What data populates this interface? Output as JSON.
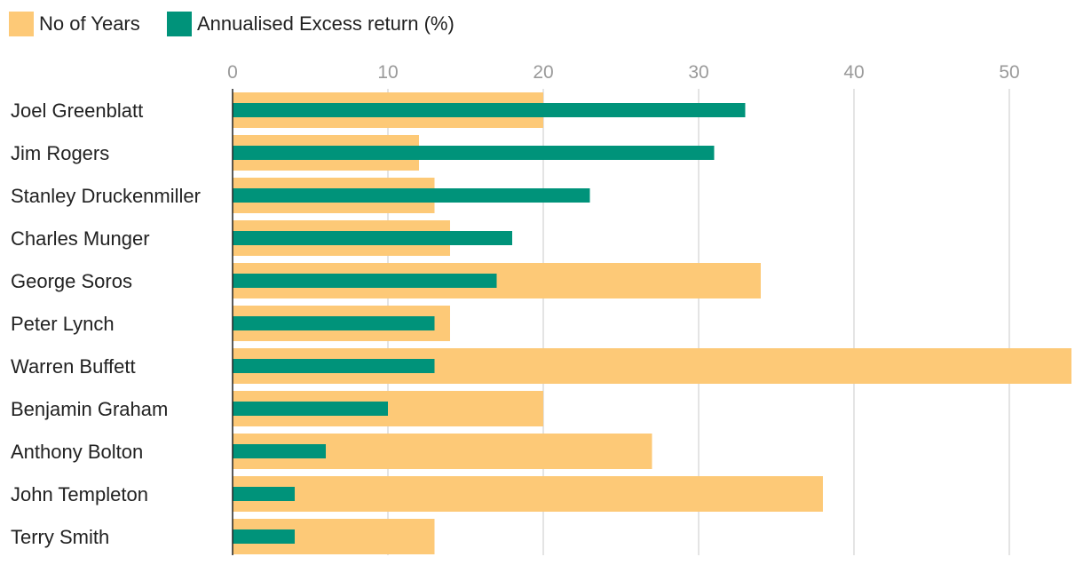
{
  "colors": {
    "years": "#fdc977",
    "excess": "#00937a",
    "grid": "#dcdcdc",
    "axis": "#222222"
  },
  "legend": [
    {
      "label": "No of Years",
      "color": "#fdc977"
    },
    {
      "label": "Annualised Excess return (%)",
      "color": "#00937a"
    }
  ],
  "chart_data": {
    "type": "bar",
    "orientation": "horizontal",
    "categories": [
      "Joel Greenblatt",
      "Jim Rogers",
      "Stanley Druckenmiller",
      "Charles Munger",
      "George Soros",
      "Peter Lynch",
      "Warren Buffett",
      "Benjamin Graham",
      "Anthony Bolton",
      "John Templeton",
      "Terry Smith"
    ],
    "series": [
      {
        "name": "No of Years",
        "values": [
          20,
          12,
          13,
          14,
          34,
          14,
          54,
          20,
          27,
          38,
          13
        ]
      },
      {
        "name": "Annualised Excess return (%)",
        "values": [
          33,
          31,
          23,
          18,
          17,
          13,
          13,
          10,
          6,
          4,
          4
        ]
      }
    ],
    "xlim": [
      0,
      54
    ],
    "xticks": [
      0,
      10,
      20,
      30,
      40,
      50
    ],
    "grid": true,
    "legend_position": "top-left"
  }
}
